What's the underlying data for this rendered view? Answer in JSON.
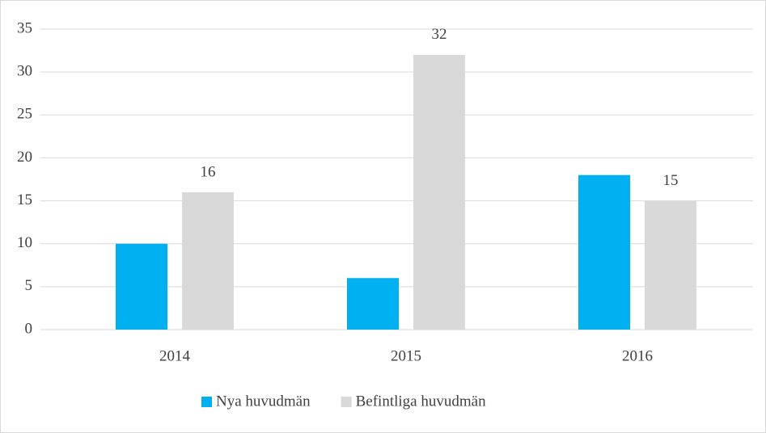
{
  "chart_data": {
    "type": "bar",
    "categories": [
      "2014",
      "2015",
      "2016"
    ],
    "series": [
      {
        "name": "Nya huvudmän",
        "color": "#00b0f0",
        "values": [
          10,
          6,
          18
        ],
        "data_labels": false
      },
      {
        "name": "Befintliga huvudmän",
        "color": "#d9d9d9",
        "values": [
          16,
          32,
          15
        ],
        "data_labels": true
      }
    ],
    "ylim": [
      0,
      35
    ],
    "yticks": [
      0,
      5,
      10,
      15,
      20,
      25,
      30,
      35
    ],
    "grid": true,
    "legend": "bottom"
  }
}
